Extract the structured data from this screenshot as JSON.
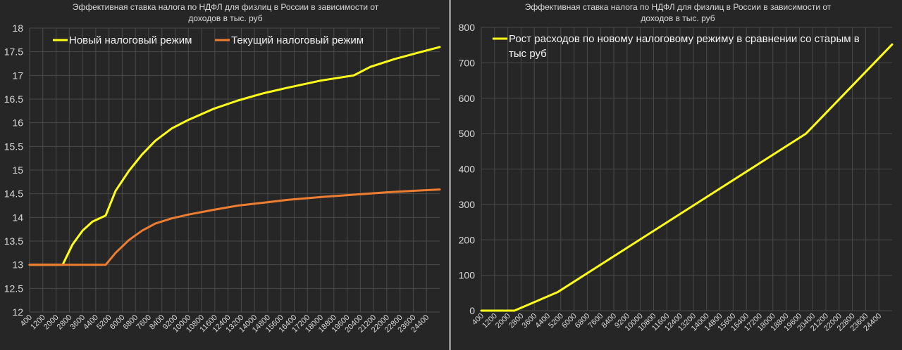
{
  "colors": {
    "background": "#262626",
    "plot_background": "#262626",
    "grid": "#4a4a4a",
    "text": "#d9d9d9",
    "legend_text": "#f2f2f2",
    "yellow": "#ffff1a",
    "orange": "#ed7d31"
  },
  "chart_data": [
    {
      "type": "line",
      "title": "Эффективная ставка налога по НДФЛ для физлиц в России в зависимости от доходов в тыс. руб",
      "title_lines": [
        "Эффективная ставка налога по НДФЛ для физлиц в России в зависимости от",
        "доходов в тыс. руб"
      ],
      "xlabel": "",
      "ylabel": "",
      "xlim": [
        400,
        25200
      ],
      "ylim": [
        12,
        18
      ],
      "y_ticks": [
        "12",
        "12.5",
        "13",
        "13.5",
        "14",
        "14.5",
        "15",
        "15.5",
        "16",
        "16.5",
        "17",
        "17.5",
        "18"
      ],
      "x_ticks": [
        "400",
        "1200",
        "2000",
        "2800",
        "3600",
        "4400",
        "5200",
        "6000",
        "6800",
        "7600",
        "8400",
        "9200",
        "10000",
        "10800",
        "11600",
        "12400",
        "13200",
        "14000",
        "14800",
        "15600",
        "16400",
        "17200",
        "18000",
        "18800",
        "19600",
        "20400",
        "21200",
        "22000",
        "22800",
        "23600",
        "24400"
      ],
      "grid": true,
      "legend_position": "top-left",
      "series": [
        {
          "name": "Новый налоговый режим",
          "color": "#ffff1a",
          "x": [
            400,
            2400,
            3000,
            3600,
            4200,
            5000,
            5600,
            6400,
            7200,
            8000,
            9000,
            10000,
            11500,
            13000,
            14500,
            16000,
            18000,
            20000,
            21000,
            22500,
            24000,
            25200
          ],
          "y": [
            13.0,
            13.0,
            13.43,
            13.72,
            13.91,
            14.04,
            14.56,
            14.98,
            15.33,
            15.62,
            15.88,
            16.06,
            16.29,
            16.47,
            16.62,
            16.74,
            16.89,
            17.0,
            17.18,
            17.35,
            17.49,
            17.6
          ]
        },
        {
          "name": "Текущий налоговый режим",
          "color": "#ed7d31",
          "x": [
            400,
            5000,
            5600,
            6400,
            7200,
            8000,
            9000,
            10000,
            11500,
            13000,
            14500,
            16000,
            18000,
            20000,
            22000,
            24000,
            25200
          ],
          "y": [
            13.0,
            13.0,
            13.25,
            13.52,
            13.72,
            13.87,
            13.98,
            14.06,
            14.16,
            14.25,
            14.31,
            14.37,
            14.43,
            14.48,
            14.53,
            14.57,
            14.59
          ]
        }
      ]
    },
    {
      "type": "line",
      "title": "Эффективная ставка налога по НДФЛ для физлиц в России в зависимости от доходов в тыс. руб",
      "title_lines": [
        "Эффективная ставка налога по НДФЛ для физлиц в России в зависимости от",
        "доходов в тыс. руб"
      ],
      "xlabel": "",
      "ylabel": "",
      "xlim": [
        400,
        25200
      ],
      "ylim": [
        0,
        800
      ],
      "y_ticks": [
        "0",
        "100",
        "200",
        "300",
        "400",
        "500",
        "600",
        "700",
        "800"
      ],
      "x_ticks": [
        "400",
        "1200",
        "2000",
        "2800",
        "3600",
        "4400",
        "5200",
        "6000",
        "6800",
        "7600",
        "8400",
        "9200",
        "10000",
        "10800",
        "11600",
        "12400",
        "13200",
        "14000",
        "14800",
        "15600",
        "16400",
        "17200",
        "18000",
        "18800",
        "19600",
        "20400",
        "21200",
        "22000",
        "22800",
        "23600",
        "24400"
      ],
      "grid": true,
      "legend_position": "top-left",
      "series": [
        {
          "name": "Рост расходов по новому налоговому режиму в сравнении со старым в тыс руб",
          "legend_lines": [
            "Рост расходов по новому налоговому режиму в сравнении со старым в",
            "тыс руб"
          ],
          "color": "#ffff1a",
          "x": [
            400,
            2400,
            5000,
            20000,
            25200
          ],
          "y": [
            0,
            0,
            52,
            500,
            752
          ]
        }
      ]
    }
  ]
}
